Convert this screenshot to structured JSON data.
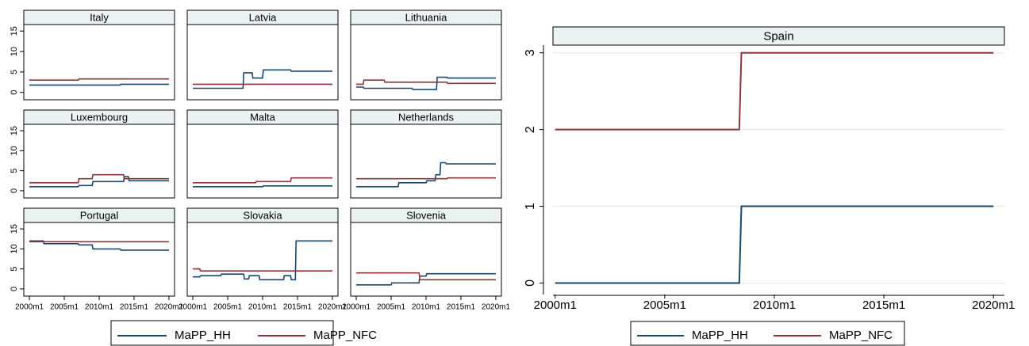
{
  "chart_data": [
    {
      "type": "line",
      "title": "Italy",
      "xlim": [
        1999.2,
        2020.8
      ],
      "ylim": [
        -1.8,
        16.6
      ],
      "yticks": [
        0,
        5,
        10,
        15
      ],
      "grid": false,
      "series": [
        {
          "name": "MaPP_HH",
          "color": "#1a476f",
          "x": [
            2000,
            2013,
            2013.1,
            2020
          ],
          "values": [
            1.8,
            1.8,
            2,
            2
          ]
        },
        {
          "name": "MaPP_NFC",
          "color": "#90353b",
          "x": [
            2000,
            2007,
            2007.1,
            2020
          ],
          "values": [
            3,
            3,
            3.3,
            3.3
          ]
        }
      ]
    },
    {
      "type": "line",
      "title": "Latvia",
      "xlim": [
        1999.2,
        2020.8
      ],
      "ylim": [
        -1.8,
        16.6
      ],
      "grid": false,
      "series": [
        {
          "color": "#1a476f",
          "x": [
            2000,
            2007.2,
            2007.3,
            2008.5,
            2008.6,
            2010,
            2010.1,
            2014,
            2014.1,
            2020
          ],
          "values": [
            1,
            1,
            4.8,
            4.8,
            3.5,
            3.5,
            5.5,
            5.5,
            5.2,
            5.2
          ]
        },
        {
          "color": "#90353b",
          "x": [
            2000,
            2020
          ],
          "values": [
            2,
            2
          ]
        }
      ]
    },
    {
      "type": "line",
      "title": "Lithuania",
      "xlim": [
        1999.2,
        2020.8
      ],
      "ylim": [
        -1.8,
        16.6
      ],
      "grid": false,
      "series": [
        {
          "color": "#1a476f",
          "x": [
            2000,
            2001,
            2001.1,
            2008,
            2008.1,
            2011.5,
            2011.6,
            2013,
            2013.1,
            2020
          ],
          "values": [
            1.3,
            1.3,
            1,
            1,
            0.7,
            0.7,
            3.7,
            3.7,
            3.5,
            3.5
          ]
        },
        {
          "color": "#90353b",
          "x": [
            2000,
            2001,
            2001.1,
            2004,
            2004.1,
            2013,
            2013.1,
            2020
          ],
          "values": [
            2,
            2,
            3,
            3,
            2.5,
            2.5,
            2.2,
            2.2
          ]
        }
      ]
    },
    {
      "type": "line",
      "title": "Luxembourg",
      "xlim": [
        1999.2,
        2020.8
      ],
      "ylim": [
        -1.8,
        16.6
      ],
      "yticks": [
        0,
        5,
        10,
        15
      ],
      "grid": false,
      "series": [
        {
          "color": "#1a476f",
          "x": [
            2000,
            2007,
            2007.1,
            2009,
            2009.1,
            2013.5,
            2013.6,
            2014.2,
            2014.3,
            2020
          ],
          "values": [
            1,
            1,
            1.3,
            1.3,
            2.3,
            2.3,
            3.5,
            3.5,
            2.5,
            2.5
          ]
        },
        {
          "color": "#90353b",
          "x": [
            2000,
            2007,
            2007.1,
            2009,
            2009.1,
            2013.5,
            2013.6,
            2020
          ],
          "values": [
            2,
            2,
            3,
            3,
            4,
            4,
            3,
            3
          ]
        }
      ]
    },
    {
      "type": "line",
      "title": "Malta",
      "xlim": [
        1999.2,
        2020.8
      ],
      "ylim": [
        -1.8,
        16.6
      ],
      "grid": false,
      "series": [
        {
          "color": "#1a476f",
          "x": [
            2000,
            2010,
            2010.1,
            2020
          ],
          "values": [
            1,
            1,
            1.2,
            1.2
          ]
        },
        {
          "color": "#90353b",
          "x": [
            2000,
            2009,
            2009.1,
            2014,
            2014.1,
            2020
          ],
          "values": [
            2,
            2,
            2.3,
            2.3,
            3.2,
            3.2
          ]
        }
      ]
    },
    {
      "type": "line",
      "title": "Netherlands",
      "xlim": [
        1999.2,
        2020.8
      ],
      "ylim": [
        -1.8,
        16.6
      ],
      "grid": false,
      "series": [
        {
          "color": "#1a476f",
          "x": [
            2000,
            2006,
            2006.1,
            2010,
            2010.1,
            2011.3,
            2011.4,
            2012,
            2012.1,
            2012.8,
            2012.9,
            2020
          ],
          "values": [
            1,
            1,
            2,
            2,
            2.5,
            2.5,
            4,
            4,
            7,
            7,
            6.7,
            6.7
          ]
        },
        {
          "color": "#90353b",
          "x": [
            2000,
            2013,
            2013.1,
            2020
          ],
          "values": [
            3,
            3,
            3.2,
            3.2
          ]
        }
      ]
    },
    {
      "type": "line",
      "title": "Portugal",
      "xlim": [
        1999.2,
        2020.8
      ],
      "ylim": [
        -1.8,
        16.6
      ],
      "yticks": [
        0,
        5,
        10,
        15
      ],
      "grid": false,
      "xticks": [
        {
          "value": 2000,
          "label": "2000m1"
        },
        {
          "value": 2005,
          "label": "2005m1"
        },
        {
          "value": 2010,
          "label": "2010m1"
        },
        {
          "value": 2015,
          "label": "2015m1"
        },
        {
          "value": 2020,
          "label": "2020m1"
        }
      ],
      "series": [
        {
          "color": "#1a476f",
          "x": [
            2000,
            2002,
            2002.1,
            2007,
            2007.1,
            2009,
            2009.1,
            2013,
            2013.1,
            2020
          ],
          "values": [
            12,
            12,
            11.3,
            11.3,
            11,
            11,
            10,
            10,
            9.7,
            9.7
          ]
        },
        {
          "color": "#90353b",
          "x": [
            2000,
            2020
          ],
          "values": [
            11.8,
            11.8
          ]
        }
      ]
    },
    {
      "type": "line",
      "title": "Slovakia",
      "xlim": [
        1999.2,
        2020.8
      ],
      "ylim": [
        -1.8,
        16.6
      ],
      "grid": false,
      "xticks": [
        {
          "value": 2000,
          "label": "2000m1"
        },
        {
          "value": 2005,
          "label": "2005m1"
        },
        {
          "value": 2010,
          "label": "2010m1"
        },
        {
          "value": 2015,
          "label": "2015m1"
        },
        {
          "value": 2020,
          "label": "2020m1"
        }
      ],
      "series": [
        {
          "color": "#1a476f",
          "x": [
            2000,
            2001,
            2001.1,
            2004,
            2004.1,
            2007.3,
            2007.4,
            2008,
            2008.1,
            2009.5,
            2009.6,
            2013,
            2013.1,
            2014,
            2014.1,
            2014.7,
            2014.8,
            2020
          ],
          "values": [
            3,
            3,
            3.3,
            3.3,
            3.7,
            3.7,
            2.5,
            2.5,
            3.3,
            3.3,
            2.3,
            2.3,
            3.3,
            3.3,
            2.3,
            2.3,
            12,
            12
          ]
        },
        {
          "color": "#90353b",
          "x": [
            2000,
            2001,
            2001.1,
            2020
          ],
          "values": [
            5,
            5,
            4.5,
            4.5
          ]
        }
      ]
    },
    {
      "type": "line",
      "title": "Slovenia",
      "xlim": [
        1999.2,
        2020.8
      ],
      "ylim": [
        -1.8,
        16.6
      ],
      "grid": false,
      "xticks": [
        {
          "value": 2000,
          "label": "2000m1"
        },
        {
          "value": 2005,
          "label": "2005m1"
        },
        {
          "value": 2010,
          "label": "2010m1"
        },
        {
          "value": 2015,
          "label": "2015m1"
        },
        {
          "value": 2020,
          "label": "2020m1"
        }
      ],
      "series": [
        {
          "color": "#1a476f",
          "x": [
            2000,
            2005,
            2005.1,
            2009,
            2009.1,
            2010,
            2010.1,
            2020
          ],
          "values": [
            1,
            1,
            1.5,
            1.5,
            3.2,
            3.2,
            3.8,
            3.8
          ]
        },
        {
          "color": "#90353b",
          "x": [
            2000,
            2009,
            2009.1,
            2020
          ],
          "values": [
            4,
            4,
            2.3,
            2.3
          ]
        }
      ]
    },
    {
      "type": "line",
      "title": "Spain",
      "xlim": [
        1999.9,
        2020.5
      ],
      "ylim": [
        -0.15,
        3.1
      ],
      "yticks": [
        0,
        1,
        2,
        3
      ],
      "grid": true,
      "xticks": [
        {
          "value": 2000,
          "label": "2000m1"
        },
        {
          "value": 2005,
          "label": "2005m1"
        },
        {
          "value": 2010,
          "label": "2010m1"
        },
        {
          "value": 2015,
          "label": "2015m1"
        },
        {
          "value": 2020,
          "label": "2020m1"
        }
      ],
      "series": [
        {
          "name": "MaPP_HH",
          "color": "#1a476f",
          "x": [
            2000,
            2008.4,
            2008.5,
            2020
          ],
          "values": [
            0,
            0,
            1,
            1
          ]
        },
        {
          "name": "MaPP_NFC",
          "color": "#90353b",
          "x": [
            2000,
            2008.4,
            2008.5,
            2020
          ],
          "values": [
            2,
            2,
            3,
            3
          ]
        }
      ]
    }
  ]
}
